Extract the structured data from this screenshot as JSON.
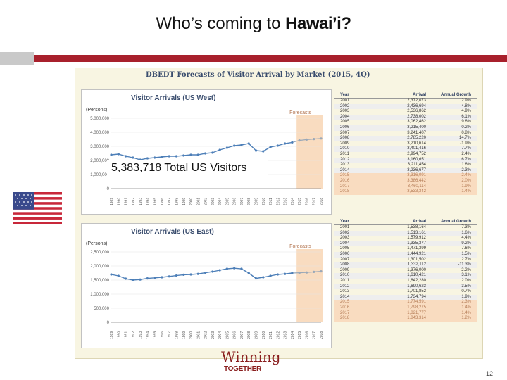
{
  "slide": {
    "title_prefix": "Who’s coming to ",
    "title_highlight": "Hawai’i?",
    "page_number": "12",
    "logo_top": "Winning",
    "logo_bottom": "TOGETHER"
  },
  "panel": {
    "title": "DBEDT Forecasts of Visitor Arrival by Market  (2015, 4Q)"
  },
  "overlay": {
    "text": "5,383,718 Total US Visitors"
  },
  "colors": {
    "accent_red": "#a8202c",
    "series_blue": "#4d7fb8",
    "forecast_shade": "#f9dcc0"
  },
  "chart_data": [
    {
      "type": "line",
      "title": "Visitor Arrivals (US West)",
      "ylabel": "(Persons)",
      "annotation": "Forecasts",
      "ylim": [
        0,
        5000000
      ],
      "yticks": [
        "0",
        "1,000,000",
        "2,000,000",
        "3,000,000",
        "4,000,000",
        "5,000,000"
      ],
      "x": [
        "1989",
        "1990",
        "1991",
        "1992",
        "1993",
        "1994",
        "1995",
        "1996",
        "1997",
        "1998",
        "1999",
        "2000",
        "2001",
        "2002",
        "2003",
        "2004",
        "2005",
        "2006",
        "2007",
        "2008",
        "2009",
        "2010",
        "2011",
        "2012",
        "2013",
        "2014",
        "2015",
        "2016",
        "2017",
        "2018"
      ],
      "forecast_from": "2015",
      "series": [
        {
          "values": [
            2400000,
            2450000,
            2300000,
            2200000,
            2050000,
            2150000,
            2200000,
            2250000,
            2300000,
            2300000,
            2350000,
            2400000,
            2400000,
            2500000,
            2550000,
            2750000,
            2900000,
            3050000,
            3100000,
            3200000,
            2700000,
            2650000,
            2950000,
            3050000,
            3200000,
            3280000,
            3420000,
            3480000,
            3520000,
            3560000
          ]
        }
      ]
    },
    {
      "type": "line",
      "title": "Visitor Arrivals (US East)",
      "ylabel": "(Persons)",
      "annotation": "Forecasts",
      "ylim": [
        0,
        2500000
      ],
      "yticks": [
        "0",
        "500,000",
        "1,000,000",
        "1,500,000",
        "2,000,000",
        "2,500,000"
      ],
      "x": [
        "1989",
        "1990",
        "1991",
        "1992",
        "1993",
        "1994",
        "1995",
        "1996",
        "1997",
        "1998",
        "1999",
        "2000",
        "2001",
        "2002",
        "2003",
        "2004",
        "2005",
        "2006",
        "2007",
        "2008",
        "2009",
        "2010",
        "2011",
        "2012",
        "2013",
        "2014",
        "2015",
        "2016",
        "2017",
        "2018"
      ],
      "forecast_from": "2015",
      "series": [
        {
          "values": [
            1700000,
            1650000,
            1550000,
            1500000,
            1520000,
            1560000,
            1580000,
            1600000,
            1630000,
            1660000,
            1690000,
            1700000,
            1720000,
            1760000,
            1800000,
            1850000,
            1900000,
            1920000,
            1900000,
            1750000,
            1560000,
            1600000,
            1650000,
            1700000,
            1720000,
            1750000,
            1760000,
            1770000,
            1790000,
            1810000
          ]
        }
      ]
    },
    {
      "type": "table",
      "columns": [
        "Year",
        "Arrival",
        "Annual Growth"
      ],
      "rows": [
        [
          "2001",
          "2,372,073",
          "2.9%"
        ],
        [
          "2002",
          "2,436,694",
          "4.8%"
        ],
        [
          "2003",
          "2,536,862",
          "4.9%"
        ],
        [
          "2004",
          "2,738,002",
          "6.1%"
        ],
        [
          "2005",
          "3,062,462",
          "9.6%"
        ],
        [
          "2006",
          "3,215,400",
          "0.2%"
        ],
        [
          "2007",
          "3,241,407",
          "0.8%"
        ],
        [
          "2008",
          "2,785,220",
          "14.7%"
        ],
        [
          "2009",
          "3,210,614",
          "-1.9%"
        ],
        [
          "2010",
          "3,401,416",
          "7.7%"
        ],
        [
          "2011",
          "2,994,752",
          "2.4%"
        ],
        [
          "2012",
          "3,160,651",
          "6.7%"
        ],
        [
          "2013",
          "3,211,454",
          "1.6%"
        ],
        [
          "2014",
          "3,236,677",
          "2.3%"
        ],
        [
          "2015",
          "3,316,091",
          "2.4%"
        ],
        [
          "2016",
          "3,386,442",
          "2.0%"
        ],
        [
          "2017",
          "3,460,114",
          "1.9%"
        ],
        [
          "2018",
          "3,533,342",
          "1.4%"
        ]
      ]
    },
    {
      "type": "table",
      "columns": [
        "Year",
        "Arrival",
        "Annual Growth"
      ],
      "rows": [
        [
          "2001",
          "1,538,164",
          "7.3%"
        ],
        [
          "2002",
          "1,513,161",
          "1.6%"
        ],
        [
          "2003",
          "1,579,912",
          "4.4%"
        ],
        [
          "2004",
          "1,335,377",
          "9.2%"
        ],
        [
          "2005",
          "1,471,399",
          "7.6%"
        ],
        [
          "2006",
          "1,444,921",
          "1.5%"
        ],
        [
          "2007",
          "1,301,502",
          "2.7%"
        ],
        [
          "2008",
          "1,332,112",
          "-11.3%"
        ],
        [
          "2009",
          "1,376,000",
          "-2.2%"
        ],
        [
          "2010",
          "1,610,421",
          "3.1%"
        ],
        [
          "2011",
          "1,642,280",
          "2.0%"
        ],
        [
          "2012",
          "1,690,623",
          "3.5%"
        ],
        [
          "2013",
          "1,701,852",
          "0.7%"
        ],
        [
          "2014",
          "1,734,794",
          "1.9%"
        ],
        [
          "2015",
          "1,774,591",
          "2.3%"
        ],
        [
          "2016",
          "1,798,275",
          "1.4%"
        ],
        [
          "2017",
          "1,821,777",
          "1.4%"
        ],
        [
          "2018",
          "1,843,314",
          "1.2%"
        ]
      ]
    }
  ]
}
